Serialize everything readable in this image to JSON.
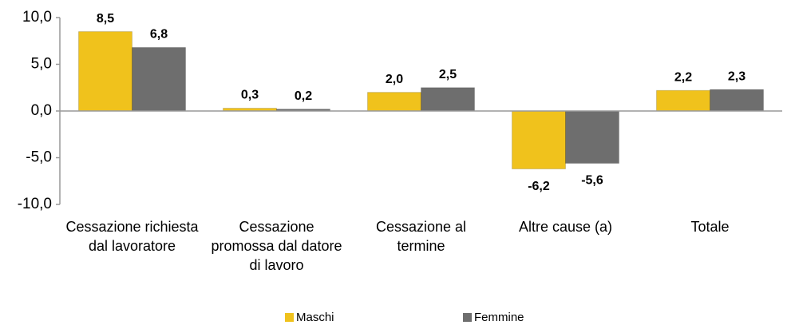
{
  "chart_data": {
    "type": "bar",
    "categories": [
      "Cessazione richiesta dal lavoratore",
      "Cessazione promossa dal datore di lavoro",
      "Cessazione al termine",
      "Altre cause (a)",
      "Totale"
    ],
    "series": [
      {
        "name": "Maschi",
        "color": "#f0c21c",
        "values": [
          8.5,
          0.3,
          2.0,
          -6.2,
          2.2
        ],
        "value_labels": [
          "8,5",
          "0,3",
          "2,0",
          "-6,2",
          "2,2"
        ]
      },
      {
        "name": "Femmine",
        "color": "#6e6e6e",
        "values": [
          6.8,
          0.2,
          2.5,
          -5.6,
          2.3
        ],
        "value_labels": [
          "6,8",
          "0,2",
          "2,5",
          "-5,6",
          "2,3"
        ]
      }
    ],
    "ylim": [
      -10,
      10
    ],
    "yticks": [
      {
        "value": -10,
        "label": "-10,0"
      },
      {
        "value": -5,
        "label": "-5,0"
      },
      {
        "value": 0,
        "label": "0,0"
      },
      {
        "value": 5,
        "label": "5,0"
      },
      {
        "value": 10,
        "label": "10,0"
      }
    ],
    "grid": false,
    "legend": "bottom"
  }
}
